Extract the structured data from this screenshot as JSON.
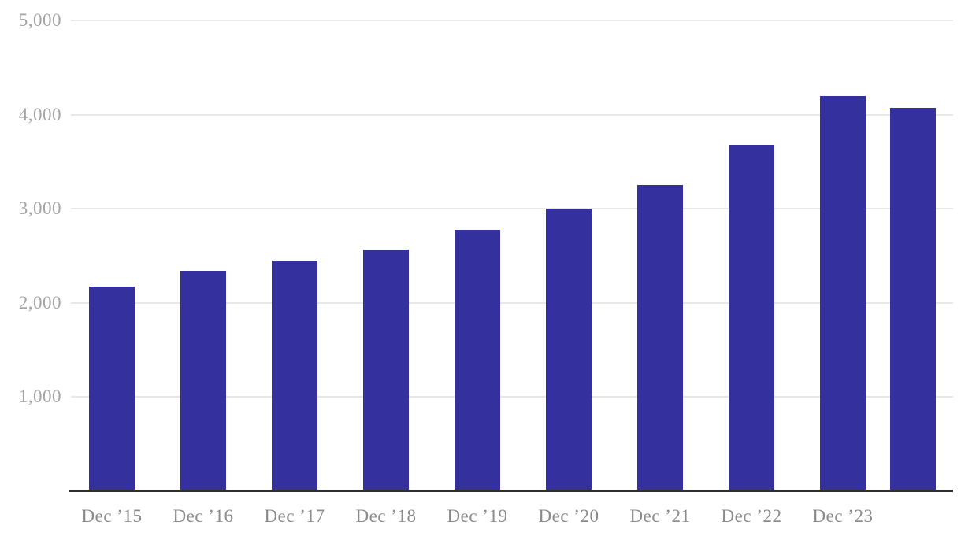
{
  "chart_data": {
    "type": "bar",
    "categories": [
      "Dec ’15",
      "Dec ’16",
      "Dec ’17",
      "Dec ’18",
      "Dec ’19",
      "Dec ’20",
      "Dec ’21",
      "Dec ’22",
      "Dec ’23",
      ""
    ],
    "values": [
      2170,
      2340,
      2450,
      2570,
      2780,
      3000,
      3250,
      3680,
      4200,
      4070
    ],
    "title": "",
    "xlabel": "",
    "ylabel": "",
    "ylim": [
      0,
      5000
    ],
    "yticks": [
      1000,
      2000,
      3000,
      4000,
      5000
    ],
    "ytick_labels": [
      "1,000",
      "2,000",
      "3,000",
      "4,000",
      "5,000"
    ],
    "grid": true,
    "legend": "none",
    "last_bar_unlabeled": true,
    "colors": {
      "bar": "#34309d",
      "gridline": "#e8e8e8",
      "axis_line": "#2f2f2f",
      "ytick_label": "#a4a4a4",
      "xtick_label": "#8b8b8b",
      "background": "#ffffff"
    }
  }
}
